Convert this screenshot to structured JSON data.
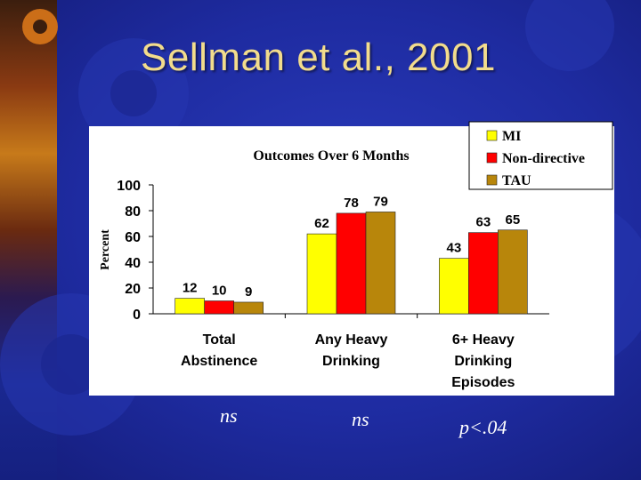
{
  "slide": {
    "title": "Sellman et al., 2001",
    "significance": [
      "ns",
      "ns",
      "p<.04"
    ]
  },
  "chart_data": {
    "type": "bar",
    "title": "Outcomes Over 6 Months",
    "xlabel": "",
    "ylabel": "Percent",
    "ylim": [
      0,
      100
    ],
    "yticks": [
      0,
      20,
      40,
      60,
      80,
      100
    ],
    "grid": false,
    "legend_position": "top-right",
    "categories": [
      [
        "Total",
        "Abstinence"
      ],
      [
        "Any Heavy",
        "Drinking"
      ],
      [
        "6+ Heavy",
        "Drinking",
        "Episodes"
      ]
    ],
    "series": [
      {
        "name": "MI",
        "values": [
          12,
          62,
          43
        ],
        "color": "#ffff00"
      },
      {
        "name": "Non-directive",
        "values": [
          10,
          78,
          63
        ],
        "color": "#ff0000"
      },
      {
        "name": "TAU",
        "values": [
          9,
          79,
          65
        ],
        "color": "#b8860b"
      }
    ]
  }
}
